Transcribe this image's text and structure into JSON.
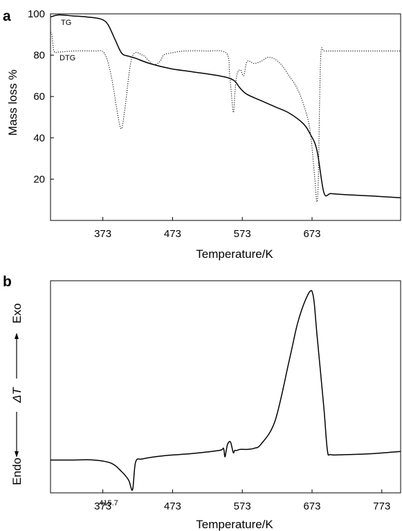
{
  "chart_data": [
    {
      "panel": "a",
      "type": "line",
      "xlabel": "Temperature/K",
      "ylabel": "Mass loss %",
      "xlim": [
        298,
        800
      ],
      "ylim": [
        0,
        100
      ],
      "xticks": [
        373,
        473,
        573,
        673
      ],
      "yticks": [
        20,
        40,
        60,
        80,
        100
      ],
      "series": [
        {
          "name": "TG",
          "style": "solid",
          "x": [
            298,
            310,
            330,
            350,
            370,
            380,
            390,
            400,
            410,
            420,
            440,
            470,
            500,
            540,
            560,
            570,
            580,
            600,
            620,
            640,
            660,
            670,
            680,
            690,
            700,
            720,
            760,
            800
          ],
          "y": [
            98.5,
            99.5,
            99,
            98.5,
            97.5,
            95,
            88,
            81,
            79.5,
            78.5,
            76,
            73.5,
            72,
            70,
            68,
            64,
            61,
            58,
            55,
            52,
            47,
            42,
            34,
            13.5,
            13,
            12.5,
            11.8,
            11
          ]
        },
        {
          "name": "DTG",
          "style": "dotted",
          "x": [
            298,
            300,
            303,
            310,
            330,
            360,
            375,
            385,
            395,
            400,
            405,
            415,
            430,
            445,
            455,
            460,
            470,
            490,
            520,
            550,
            555,
            560,
            562,
            565,
            570,
            575,
            580,
            590,
            600,
            610,
            620,
            630,
            640,
            650,
            660,
            670,
            677,
            680,
            682,
            684,
            686,
            690,
            700,
            720,
            760,
            800
          ],
          "y": [
            91,
            90,
            82,
            81.5,
            82,
            82,
            81,
            70,
            50,
            44.5,
            55,
            79,
            80,
            75.5,
            77,
            80,
            81,
            82,
            82,
            81,
            70,
            52.5,
            60,
            70,
            73,
            70,
            77,
            76,
            77,
            79,
            78,
            75,
            70,
            65,
            57,
            44,
            20,
            9,
            20,
            60,
            82,
            82,
            82,
            82,
            82,
            82
          ]
        }
      ]
    },
    {
      "panel": "b",
      "type": "line",
      "xlabel": "Temperature/K",
      "ylabel_left": "Endo",
      "ylabel_mid": "ΔT",
      "ylabel_right": "Exo",
      "xlim": [
        298,
        800
      ],
      "ylim": [
        0,
        100
      ],
      "xticks": [
        373,
        473,
        573,
        673,
        773
      ],
      "annotations": [
        {
          "text": "415.7",
          "x": 415.7,
          "y": -8
        }
      ],
      "series": [
        {
          "name": "",
          "x": [
            298,
            330,
            360,
            385,
            400,
            410,
            415.7,
            420,
            430,
            460,
            500,
            540,
            546,
            548,
            550,
            552,
            556,
            560,
            562,
            565,
            570,
            580,
            590,
            600,
            620,
            640,
            650,
            655,
            660,
            665,
            668,
            670,
            673,
            676,
            680,
            690,
            695,
            700,
            720,
            760,
            800
          ],
          "y": [
            15.5,
            15.5,
            15.5,
            14,
            10,
            6,
            1.5,
            14.5,
            16,
            17.5,
            18.5,
            20,
            21,
            17,
            20,
            23,
            24,
            19,
            20,
            20,
            20.5,
            20.5,
            21,
            23,
            34,
            62,
            77,
            83,
            88,
            92,
            94,
            95,
            95,
            90,
            75,
            40,
            20,
            18,
            18,
            18.5,
            19.5
          ]
        }
      ]
    }
  ]
}
